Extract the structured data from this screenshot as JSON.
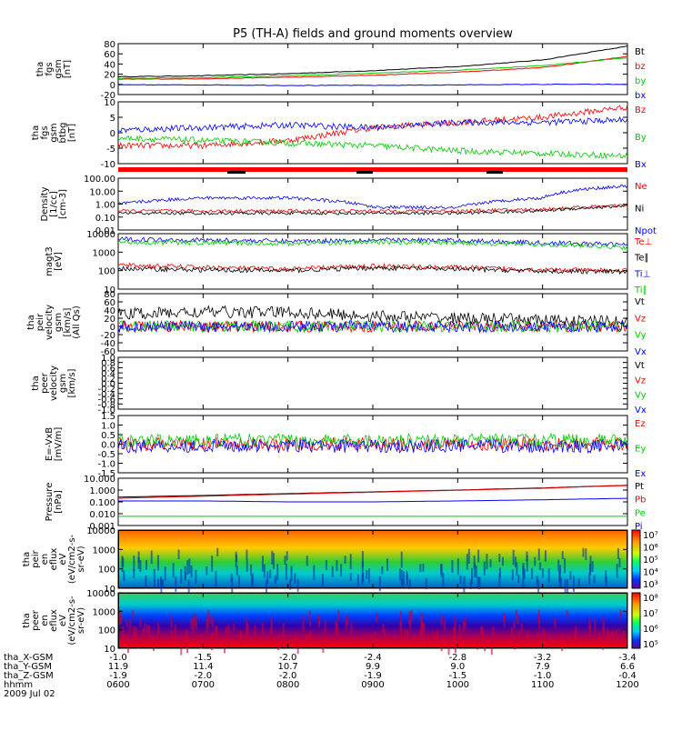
{
  "title": "P5 (TH-A) fields and ground moments overview",
  "colors": {
    "black": "#000000",
    "red": "#ff0000",
    "green": "#00cc00",
    "blue": "#0000ff"
  },
  "time_axis": {
    "ticks": [
      "0600",
      "0700",
      "0800",
      "0900",
      "1000",
      "1100",
      "1200"
    ],
    "start_hour": 6,
    "end_hour": 12
  },
  "panels": [
    {
      "id": "fgs_mag",
      "label": [
        "tha",
        "fgs",
        "gsm",
        "[nT]"
      ],
      "yticks": [
        "80",
        "60",
        "40",
        "20",
        "0",
        "-20"
      ],
      "legend": [
        {
          "text": "Bt",
          "color": "black"
        },
        {
          "text": "bz",
          "color": "red"
        },
        {
          "text": "by",
          "color": "green"
        },
        {
          "text": "bx",
          "color": "blue"
        }
      ]
    },
    {
      "id": "fgs_comp",
      "label": [
        "tha",
        "fgs",
        "gsm",
        "btbg",
        "[nT]"
      ],
      "yticks": [
        "10",
        "5",
        "0",
        "-5",
        "-10"
      ],
      "legend": [
        {
          "text": "Bz",
          "color": "red"
        },
        {
          "text": "By",
          "color": "green"
        },
        {
          "text": "Bx",
          "color": "blue"
        }
      ]
    },
    {
      "id": "density",
      "label": [
        "Density",
        "[1/cc]",
        "[cm-3]"
      ],
      "yticks": [
        "100.00",
        "10.00",
        "1.00",
        "0.10",
        "0.01"
      ],
      "legend": [
        {
          "text": "Ne",
          "color": "red"
        },
        {
          "text": "Ni",
          "color": "black"
        },
        {
          "text": "Npot",
          "color": "blue"
        }
      ]
    },
    {
      "id": "temp",
      "label": [
        "magt3",
        "[eV]"
      ],
      "yticks": [
        "10000",
        "1000",
        "100",
        "10"
      ],
      "legend": [
        {
          "text": "Te⊥",
          "color": "red"
        },
        {
          "text": "Te∥",
          "color": "black"
        },
        {
          "text": "Ti⊥",
          "color": "blue"
        },
        {
          "text": "Ti∥",
          "color": "green"
        }
      ]
    },
    {
      "id": "peir_vel",
      "label": [
        "tha",
        "peir",
        "velocity",
        "gsm",
        "[km/s]",
        "(All Qs)"
      ],
      "yticks": [
        "80",
        "60",
        "40",
        "20",
        "0",
        "-20",
        "-40",
        "-60"
      ],
      "legend": [
        {
          "text": "Vt",
          "color": "black"
        },
        {
          "text": "Vz",
          "color": "red"
        },
        {
          "text": "Vy",
          "color": "green"
        },
        {
          "text": "Vx",
          "color": "blue"
        }
      ]
    },
    {
      "id": "peer_vel",
      "label": [
        "tha",
        "peer",
        "velocity",
        "gsm",
        "[km/s]"
      ],
      "yticks": [
        "1.0",
        "0.8",
        "0.6",
        "0.4",
        "0.2",
        "0.0",
        "-0.2",
        "-0.4",
        "-0.6",
        "-0.8",
        "-1.0"
      ],
      "legend": [
        {
          "text": "Vt",
          "color": "black"
        },
        {
          "text": "Vz",
          "color": "red"
        },
        {
          "text": "Vy",
          "color": "green"
        },
        {
          "text": "Vx",
          "color": "blue"
        }
      ]
    },
    {
      "id": "efield",
      "label": [
        "E=-VxB",
        "[mV/m]"
      ],
      "yticks": [
        "1.5",
        "1.0",
        "0.5",
        "0.0",
        "-0.5",
        "-1.0",
        "-1.5"
      ],
      "legend": [
        {
          "text": "Ez",
          "color": "red"
        },
        {
          "text": "Ey",
          "color": "green"
        },
        {
          "text": "Ex",
          "color": "blue"
        }
      ]
    },
    {
      "id": "pressure",
      "label": [
        "Pressure",
        "[nPa]"
      ],
      "yticks": [
        "10.000",
        "1.000",
        "0.100",
        "0.010",
        "0.001"
      ],
      "legend": [
        {
          "text": "Pt",
          "color": "black"
        },
        {
          "text": "Pb",
          "color": "red"
        },
        {
          "text": "Pe",
          "color": "green"
        },
        {
          "text": "Pi",
          "color": "blue"
        }
      ]
    },
    {
      "id": "peir_spec",
      "label": [
        "tha",
        "peir",
        "en",
        "eflux",
        "eV",
        "(eV/cm2-s-",
        "sr-eV)"
      ],
      "yticks": [
        "10000",
        "1000",
        "100",
        "10"
      ],
      "colorbar": [
        "10⁷",
        "10⁶",
        "10⁵",
        "10⁴",
        "10³"
      ]
    },
    {
      "id": "peer_spec",
      "label": [
        "tha",
        "peer",
        "en",
        "eflux",
        "eV",
        "(eV/cm2-s-",
        "sr-eV)"
      ],
      "yticks": [
        "10000",
        "1000",
        "100",
        "10"
      ],
      "colorbar": [
        "10⁸",
        "10⁷",
        "10⁶",
        "10⁵"
      ]
    }
  ],
  "orbit": {
    "rows": [
      {
        "label": "tha_X-GSM",
        "values": [
          "-1.0",
          "-1.5",
          "-2.0",
          "-2.4",
          "-2.8",
          "-3.2",
          "-3.4"
        ]
      },
      {
        "label": "tha_Y-GSM",
        "values": [
          "11.9",
          "11.4",
          "10.7",
          "9.9",
          "9.0",
          "7.9",
          "6.6"
        ]
      },
      {
        "label": "tha_Z-GSM",
        "values": [
          "-1.9",
          "-2.0",
          "-2.0",
          "-1.9",
          "-1.5",
          "-1.0",
          "-0.4"
        ]
      },
      {
        "label": "hhmm",
        "values": [
          "0600",
          "0700",
          "0800",
          "0900",
          "1000",
          "1100",
          "1200"
        ]
      }
    ],
    "date": "2009 Jul 02"
  },
  "chart_data": {
    "type": "line",
    "title": "P5 (TH-A) fields and ground moments overview",
    "x_range": [
      "0600",
      "1200"
    ],
    "panels": [
      {
        "name": "fgs gsm [nT]",
        "ylim": [
          -20,
          80
        ],
        "series": [
          {
            "name": "Bt",
            "x_hour": [
              6,
              7,
              8,
              9,
              10,
              11,
              12
            ],
            "values": [
              15,
              17,
              21,
              27,
              35,
              48,
              75
            ]
          },
          {
            "name": "bz",
            "x_hour": [
              6,
              7,
              8,
              9,
              10,
              11,
              12
            ],
            "values": [
              10,
              11,
              14,
              18,
              24,
              33,
              55
            ]
          },
          {
            "name": "by",
            "x_hour": [
              6,
              7,
              8,
              9,
              10,
              11,
              12
            ],
            "values": [
              12,
              13,
              17,
              22,
              28,
              37,
              52
            ]
          },
          {
            "name": "bx",
            "x_hour": [
              6,
              7,
              8,
              9,
              10,
              11,
              12
            ],
            "values": [
              -1,
              -1,
              -2,
              -2,
              -1,
              0,
              0
            ]
          }
        ]
      },
      {
        "name": "fgs gsm btbg [nT]",
        "ylim": [
          -12,
          12
        ],
        "series": [
          {
            "name": "Bz",
            "x_hour": [
              6,
              7,
              8,
              9,
              10,
              11,
              12
            ],
            "values": [
              -5,
              -5,
              -3,
              2,
              4,
              6,
              10
            ]
          },
          {
            "name": "By",
            "x_hour": [
              6,
              7,
              8,
              9,
              10,
              11,
              12
            ],
            "values": [
              -2,
              -3,
              -4,
              -5,
              -7,
              -8,
              -9
            ]
          },
          {
            "name": "Bx",
            "x_hour": [
              6,
              7,
              8,
              9,
              10,
              11,
              12
            ],
            "values": [
              1,
              2,
              3,
              2,
              4,
              4,
              5
            ]
          }
        ]
      },
      {
        "name": "Density [cm-3]",
        "ylim": [
          0.01,
          100
        ],
        "scale": "log",
        "series": [
          {
            "name": "Ne",
            "x_hour": [
              6,
              7,
              8,
              9,
              10,
              11,
              12
            ],
            "values": [
              0.3,
              0.3,
              0.3,
              0.3,
              0.3,
              0.4,
              0.8
            ]
          },
          {
            "name": "Ni",
            "x_hour": [
              6,
              7,
              8,
              9,
              10,
              11,
              12
            ],
            "values": [
              0.2,
              0.2,
              0.2,
              0.2,
              0.2,
              0.3,
              0.7
            ]
          },
          {
            "name": "Npot",
            "x_hour": [
              6,
              7,
              8,
              9,
              10,
              11,
              12
            ],
            "values": [
              1,
              3,
              3,
              0.6,
              0.5,
              3,
              25
            ]
          }
        ]
      },
      {
        "name": "magt3 [eV]",
        "ylim": [
          10,
          10000
        ],
        "scale": "log",
        "series": [
          {
            "name": "Te⊥",
            "x_hour": [
              6,
              7,
              8,
              9,
              10,
              11,
              12
            ],
            "values": [
              200,
              150,
              120,
              180,
              150,
              110,
              100
            ]
          },
          {
            "name": "Te∥",
            "x_hour": [
              6,
              7,
              8,
              9,
              10,
              11,
              12
            ],
            "values": [
              130,
              110,
              100,
              140,
              120,
              95,
              85
            ]
          },
          {
            "name": "Ti⊥",
            "x_hour": [
              6,
              7,
              8,
              9,
              10,
              11,
              12
            ],
            "values": [
              5000,
              4500,
              3900,
              4600,
              4200,
              3200,
              2500
            ]
          },
          {
            "name": "Ti∥",
            "x_hour": [
              6,
              7,
              8,
              9,
              10,
              11,
              12
            ],
            "values": [
              3500,
              3200,
              2900,
              3500,
              3200,
              2600,
              1800
            ]
          }
        ]
      },
      {
        "name": "peir velocity gsm [km/s]",
        "ylim": [
          -60,
          80
        ],
        "series": [
          {
            "name": "Vt",
            "x_hour": [
              6,
              7,
              8,
              9,
              10,
              11,
              12
            ],
            "values": [
              30,
              35,
              35,
              25,
              20,
              15,
              10
            ]
          },
          {
            "name": "Vz",
            "x_hour": [
              6,
              7,
              8,
              9,
              10,
              11,
              12
            ],
            "values": [
              0,
              0,
              0,
              0,
              0,
              0,
              0
            ]
          },
          {
            "name": "Vy",
            "x_hour": [
              6,
              7,
              8,
              9,
              10,
              11,
              12
            ],
            "values": [
              0,
              0,
              0,
              0,
              0,
              0,
              0
            ]
          },
          {
            "name": "Vx",
            "x_hour": [
              6,
              7,
              8,
              9,
              10,
              11,
              12
            ],
            "values": [
              0,
              0,
              0,
              0,
              0,
              0,
              0
            ]
          }
        ]
      },
      {
        "name": "E=-VxB [mV/m]",
        "ylim": [
          -1.5,
          1.5
        ],
        "series": [
          {
            "name": "Ez",
            "x_hour": [
              6,
              7,
              8,
              9,
              10,
              11,
              12
            ],
            "values": [
              0,
              0,
              0,
              0,
              0,
              0,
              0
            ]
          },
          {
            "name": "Ey",
            "x_hour": [
              6,
              7,
              8,
              9,
              10,
              11,
              12
            ],
            "values": [
              0.2,
              0.2,
              0.2,
              0.2,
              0.2,
              0.2,
              0.2
            ]
          },
          {
            "name": "Ex",
            "x_hour": [
              6,
              7,
              8,
              9,
              10,
              11,
              12
            ],
            "values": [
              -0.1,
              -0.1,
              -0.1,
              -0.1,
              -0.1,
              -0.1,
              -0.1
            ]
          }
        ]
      },
      {
        "name": "Pressure [nPa]",
        "ylim": [
          0.001,
          10
        ],
        "scale": "log",
        "series": [
          {
            "name": "Pt",
            "x_hour": [
              6,
              7,
              8,
              9,
              10,
              11,
              12
            ],
            "values": [
              0.25,
              0.35,
              0.5,
              0.7,
              1.0,
              1.5,
              2.5
            ]
          },
          {
            "name": "Pb",
            "x_hour": [
              6,
              7,
              8,
              9,
              10,
              11,
              12
            ],
            "values": [
              0.2,
              0.3,
              0.45,
              0.65,
              0.95,
              1.4,
              2.4
            ]
          },
          {
            "name": "Pe",
            "x_hour": [
              6,
              7,
              8,
              9,
              10,
              11,
              12
            ],
            "values": [
              0.006,
              0.006,
              0.006,
              0.006,
              0.006,
              0.006,
              0.006
            ]
          },
          {
            "name": "Pi",
            "x_hour": [
              6,
              7,
              8,
              9,
              10,
              11,
              12
            ],
            "values": [
              0.12,
              0.12,
              0.1,
              0.1,
              0.12,
              0.15,
              0.2
            ]
          }
        ]
      }
    ]
  }
}
